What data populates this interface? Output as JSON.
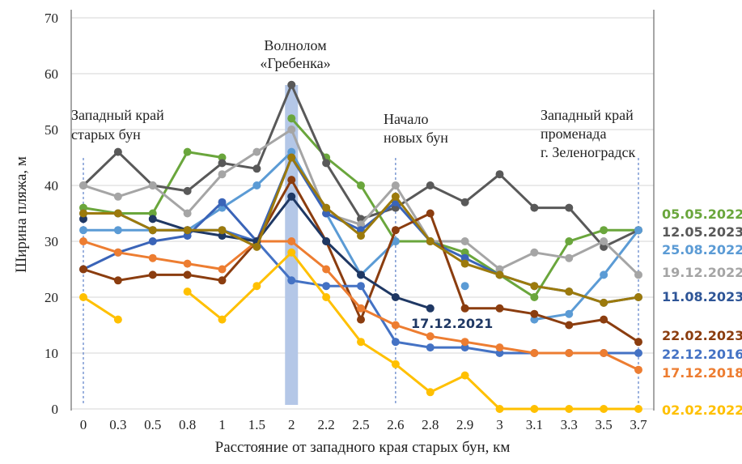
{
  "chart_data": {
    "type": "line",
    "xlabel": "Расстояние от западного края старых бун, км",
    "ylabel": "Ширина пляжа, м",
    "ylim": [
      0,
      70
    ],
    "yticks": [
      0,
      10,
      20,
      30,
      40,
      50,
      60,
      70
    ],
    "grid": true,
    "categories": [
      "0",
      "0.3",
      "0.5",
      "0.8",
      "1",
      "1.5",
      "2",
      "2.2",
      "2.5",
      "2.6",
      "2.8",
      "2.9",
      "3",
      "3.1",
      "3.3",
      "3.5",
      "3.7"
    ],
    "annotations": {
      "west_old_groins": [
        "Западный край",
        "старых бун"
      ],
      "breakwater": [
        "Волнолом",
        "«Гребенка»"
      ],
      "new_groins": [
        "Начало",
        "новых бун"
      ],
      "promenade": [
        "Западный край",
        "променада",
        "г. Зеленоградск"
      ],
      "inline_label": "17.12.2021"
    },
    "highlight_category": "2",
    "dashed_categories": [
      "0",
      "2.6",
      "3.7"
    ],
    "series": [
      {
        "name": "05.05.2022",
        "color": "#6aa63c",
        "values": [
          36,
          35,
          35,
          46,
          45,
          null,
          52,
          45,
          40,
          30,
          30,
          28,
          24,
          20,
          30,
          32,
          32
        ]
      },
      {
        "name": "12.05.2023",
        "color": "#595959",
        "values": [
          40,
          46,
          40,
          39,
          44,
          43,
          58,
          44,
          34,
          36,
          40,
          37,
          42,
          36,
          36,
          29,
          32
        ]
      },
      {
        "name": "25.08.2022",
        "color": "#5b9bd5",
        "values": [
          32,
          32,
          32,
          32,
          36,
          40,
          46,
          35,
          24,
          30,
          null,
          22,
          null,
          16,
          17,
          24,
          32
        ]
      },
      {
        "name": "19.12.2022",
        "color": "#a5a5a5",
        "values": [
          40,
          38,
          40,
          35,
          42,
          46,
          50,
          35,
          33,
          40,
          30,
          30,
          25,
          28,
          27,
          30,
          24
        ]
      },
      {
        "name": "11.08.2023",
        "color": "#3a64b8",
        "values": [
          25,
          28,
          30,
          31,
          37,
          30,
          45,
          35,
          32,
          37,
          30,
          27,
          24,
          22,
          21,
          19,
          20
        ]
      },
      {
        "name": "22.02.2023",
        "color": "#8b3d0f",
        "values": [
          25,
          23,
          24,
          24,
          23,
          30,
          41,
          30,
          16,
          32,
          35,
          18,
          18,
          17,
          15,
          16,
          12
        ]
      },
      {
        "name": "22.12.2016",
        "color": "#4472c4",
        "values": [
          35,
          35,
          32,
          32,
          32,
          30,
          23,
          22,
          22,
          12,
          11,
          11,
          10,
          10,
          10,
          10,
          10
        ]
      },
      {
        "name": "17.12.2018",
        "color": "#ed7d31",
        "values": [
          30,
          28,
          27,
          26,
          25,
          30,
          30,
          25,
          18,
          15,
          13,
          12,
          11,
          10,
          10,
          10,
          7
        ]
      },
      {
        "name": "02.02.2022",
        "color": "#ffc000",
        "values": [
          20,
          16,
          null,
          21,
          16,
          22,
          28,
          20,
          12,
          8,
          3,
          6,
          0,
          0,
          0,
          0,
          0
        ]
      },
      {
        "name": "17.12.2021",
        "color": "#1f3864",
        "values": [
          34,
          null,
          34,
          32,
          31,
          30,
          38,
          30,
          24,
          20,
          18,
          null,
          null,
          null,
          null,
          null,
          null
        ]
      },
      {
        "name": "",
        "color": "#9c7a0c",
        "values": [
          35,
          35,
          32,
          32,
          32,
          29,
          45,
          36,
          31,
          38,
          30,
          26,
          24,
          22,
          21,
          19,
          20
        ]
      }
    ],
    "legend_labels": [
      {
        "text": "05.05.2022",
        "color": "#6aa63c"
      },
      {
        "text": "12.05.2023",
        "color": "#595959"
      },
      {
        "text": "25.08.2022",
        "color": "#5b9bd5"
      },
      {
        "text": "19.12.2022",
        "color": "#a5a5a5"
      },
      {
        "text": "11.08.2023",
        "color": "#2e5597"
      },
      {
        "text": "22.02.2023",
        "color": "#8b3d0f"
      },
      {
        "text": "22.12.2016",
        "color": "#4472c4"
      },
      {
        "text": "17.12.2018",
        "color": "#ed7d31"
      },
      {
        "text": "02.02.2022",
        "color": "#ffc000"
      }
    ]
  }
}
